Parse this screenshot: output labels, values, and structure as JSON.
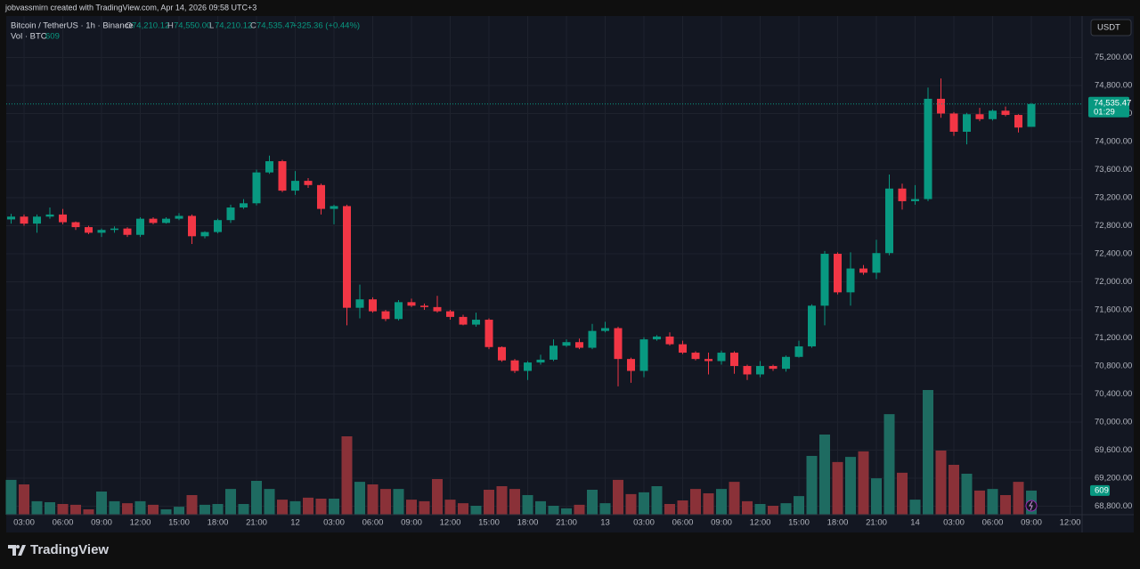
{
  "credit": "jobvassmirn created with TradingView.com, Apr 14, 2026 09:58 UTC+3",
  "logo": "TradingView",
  "chart_data": {
    "type": "candlestick",
    "legend": {
      "symbol": "Bitcoin / TetherUS · 1h · Binance",
      "ohlc": [
        {
          "key": "O",
          "value": "74,210.12"
        },
        {
          "key": "H",
          "value": "74,550.00"
        },
        {
          "key": "L",
          "value": "74,210.12"
        },
        {
          "key": "C",
          "value": "74,535.47"
        }
      ],
      "change": "+325.36 (+0.44%)",
      "volume_title": "Vol · BTC"
    },
    "currency": "USDT",
    "categories": [
      null,
      "03:00",
      null,
      null,
      "06:00",
      null,
      null,
      "09:00",
      null,
      null,
      "12:00",
      null,
      null,
      "15:00",
      null,
      null,
      "18:00",
      null,
      null,
      "21:00",
      null,
      null,
      "12",
      null,
      null,
      "03:00",
      null,
      null,
      "06:00",
      null,
      null,
      "09:00",
      null,
      null,
      "12:00",
      null,
      null,
      "15:00",
      null,
      null,
      "18:00",
      null,
      null,
      "21:00",
      null,
      null,
      "13",
      null,
      null,
      "03:00",
      null,
      null,
      "06:00",
      null,
      null,
      "09:00",
      null,
      null,
      "12:00",
      null,
      null,
      "15:00",
      null,
      null,
      "18:00",
      null,
      null,
      "21:00",
      null,
      null,
      "14",
      null,
      null,
      "03:00",
      null,
      null,
      "06:00",
      null,
      null,
      "09:00",
      null,
      null,
      "12:00"
    ],
    "ohlc": {
      "up_color": "#089981",
      "down_color": "#f23645",
      "open": [
        72890,
        72930,
        72830,
        72930,
        72960,
        72850,
        72780,
        72700,
        72740,
        72760,
        72670,
        72900,
        72840,
        72900,
        72940,
        72650,
        72710,
        72880,
        73060,
        73120,
        73560,
        73720,
        73300,
        73440,
        73380,
        73040,
        73080,
        71630,
        71750,
        71580,
        71470,
        71710,
        71660,
        71640,
        71580,
        71500,
        71390,
        71460,
        71070,
        70880,
        70730,
        70850,
        70890,
        71090,
        71140,
        71060,
        71300,
        71340,
        70900,
        70730,
        71180,
        71220,
        71110,
        70990,
        70900,
        70870,
        70990,
        70800,
        70680,
        70800,
        70760,
        70930,
        71080,
        71660,
        72400,
        71850,
        72190,
        72130,
        72410,
        73330,
        73150,
        73180,
        74610,
        74400,
        74140,
        74390,
        74320,
        74440,
        74380,
        74210.12,
        null,
        null,
        null
      ],
      "high": [
        72970,
        72960,
        72960,
        73060,
        73040,
        72860,
        72800,
        72760,
        72790,
        72780,
        72920,
        72920,
        72920,
        72980,
        72960,
        72720,
        72900,
        73100,
        73180,
        73600,
        73800,
        73740,
        73580,
        73480,
        73400,
        73100,
        73100,
        71960,
        71780,
        71600,
        71740,
        71760,
        71690,
        71800,
        71600,
        71530,
        71560,
        71480,
        71080,
        70900,
        70870,
        70960,
        71180,
        71180,
        71190,
        71400,
        71430,
        71360,
        70920,
        71210,
        71240,
        71280,
        71160,
        71010,
        70990,
        71020,
        71010,
        70820,
        70870,
        70820,
        70950,
        71160,
        71680,
        72440,
        72420,
        72420,
        72240,
        72600,
        73530,
        73400,
        73380,
        74770,
        74900,
        74420,
        74410,
        74480,
        74460,
        74500,
        74390,
        74550,
        null,
        null,
        null
      ],
      "low": [
        72830,
        72800,
        72700,
        72900,
        72820,
        72740,
        72680,
        72640,
        72700,
        72640,
        72640,
        72820,
        72830,
        72880,
        72540,
        72620,
        72690,
        72840,
        73040,
        73090,
        73540,
        73280,
        73240,
        73340,
        72960,
        72820,
        71380,
        71480,
        71560,
        71440,
        71450,
        71640,
        71600,
        71560,
        71460,
        71380,
        71360,
        71040,
        70860,
        70700,
        70600,
        70820,
        70870,
        71070,
        71040,
        71040,
        71280,
        70510,
        70560,
        70640,
        71160,
        71090,
        70970,
        70880,
        70680,
        70820,
        70690,
        70600,
        70640,
        70730,
        70720,
        70920,
        71060,
        71380,
        71820,
        71660,
        72100,
        72040,
        72380,
        73030,
        73100,
        73150,
        74340,
        74080,
        73960,
        74290,
        74300,
        74360,
        74130,
        74210.12,
        null,
        null,
        null
      ],
      "close": [
        72930,
        72830,
        72930,
        72960,
        72850,
        72780,
        72700,
        72740,
        72760,
        72670,
        72900,
        72840,
        72900,
        72940,
        72650,
        72710,
        72880,
        73060,
        73120,
        73560,
        73720,
        73300,
        73440,
        73380,
        73040,
        73080,
        71630,
        71750,
        71580,
        71470,
        71710,
        71660,
        71640,
        71580,
        71500,
        71390,
        71460,
        71070,
        70880,
        70730,
        70850,
        70890,
        71090,
        71140,
        71060,
        71300,
        71340,
        70900,
        70730,
        71180,
        71220,
        71110,
        70990,
        70900,
        70870,
        70990,
        70800,
        70680,
        70800,
        70760,
        70930,
        71080,
        71660,
        72400,
        71850,
        72190,
        72130,
        72410,
        73330,
        73150,
        73180,
        74610,
        74400,
        74140,
        74390,
        74320,
        74440,
        74380,
        74200,
        74535.47,
        null,
        null,
        null
      ]
    },
    "volume": {
      "up_color": "#1e6b61",
      "down_color": "#8a3138",
      "values": [
        880,
        765,
        340,
        315,
        270,
        250,
        135,
        585,
        340,
        290,
        340,
        250,
        135,
        200,
        495,
        250,
        270,
        650,
        270,
        855,
        650,
        380,
        340,
        430,
        405,
        405,
        1980,
        830,
        765,
        650,
        650,
        380,
        340,
        900,
        380,
        290,
        225,
        630,
        720,
        650,
        495,
        340,
        225,
        160,
        250,
        630,
        290,
        880,
        520,
        565,
        720,
        270,
        360,
        650,
        540,
        650,
        830,
        340,
        270,
        225,
        290,
        470,
        1485,
        2025,
        1330,
        1460,
        1600,
        920,
        2540,
        1060,
        380,
        3150,
        1620,
        1260,
        1035,
        610,
        650,
        495,
        830,
        609,
        null,
        null,
        null
      ]
    },
    "last_price": {
      "value": 74535.47,
      "label": "74,535.47"
    },
    "countdown": "01:29",
    "ylim": [
      68680,
      75790
    ],
    "yticks": [
      {
        "value": 68800,
        "label": "68,800.00"
      },
      {
        "value": 69200,
        "label": "69,200.00"
      },
      {
        "value": 69600,
        "label": "69,600.00"
      },
      {
        "value": 70000,
        "label": "70,000.00"
      },
      {
        "value": 70400,
        "label": "70,400.00"
      },
      {
        "value": 70800,
        "label": "70,800.00"
      },
      {
        "value": 71200,
        "label": "71,200.00"
      },
      {
        "value": 71600,
        "label": "71,600.00"
      },
      {
        "value": 72000,
        "label": "72,000.00"
      },
      {
        "value": 72400,
        "label": "72,400.00"
      },
      {
        "value": 72800,
        "label": "72,800.00"
      },
      {
        "value": 73200,
        "label": "73,200.00"
      },
      {
        "value": 73600,
        "label": "73,600.00"
      },
      {
        "value": 74000,
        "label": "74,000.00"
      },
      {
        "value": 74400,
        "label": "74,400.00"
      },
      {
        "value": 74800,
        "label": "74,800.00"
      },
      {
        "value": 75200,
        "label": "75,200.00"
      }
    ],
    "grid": true
  }
}
